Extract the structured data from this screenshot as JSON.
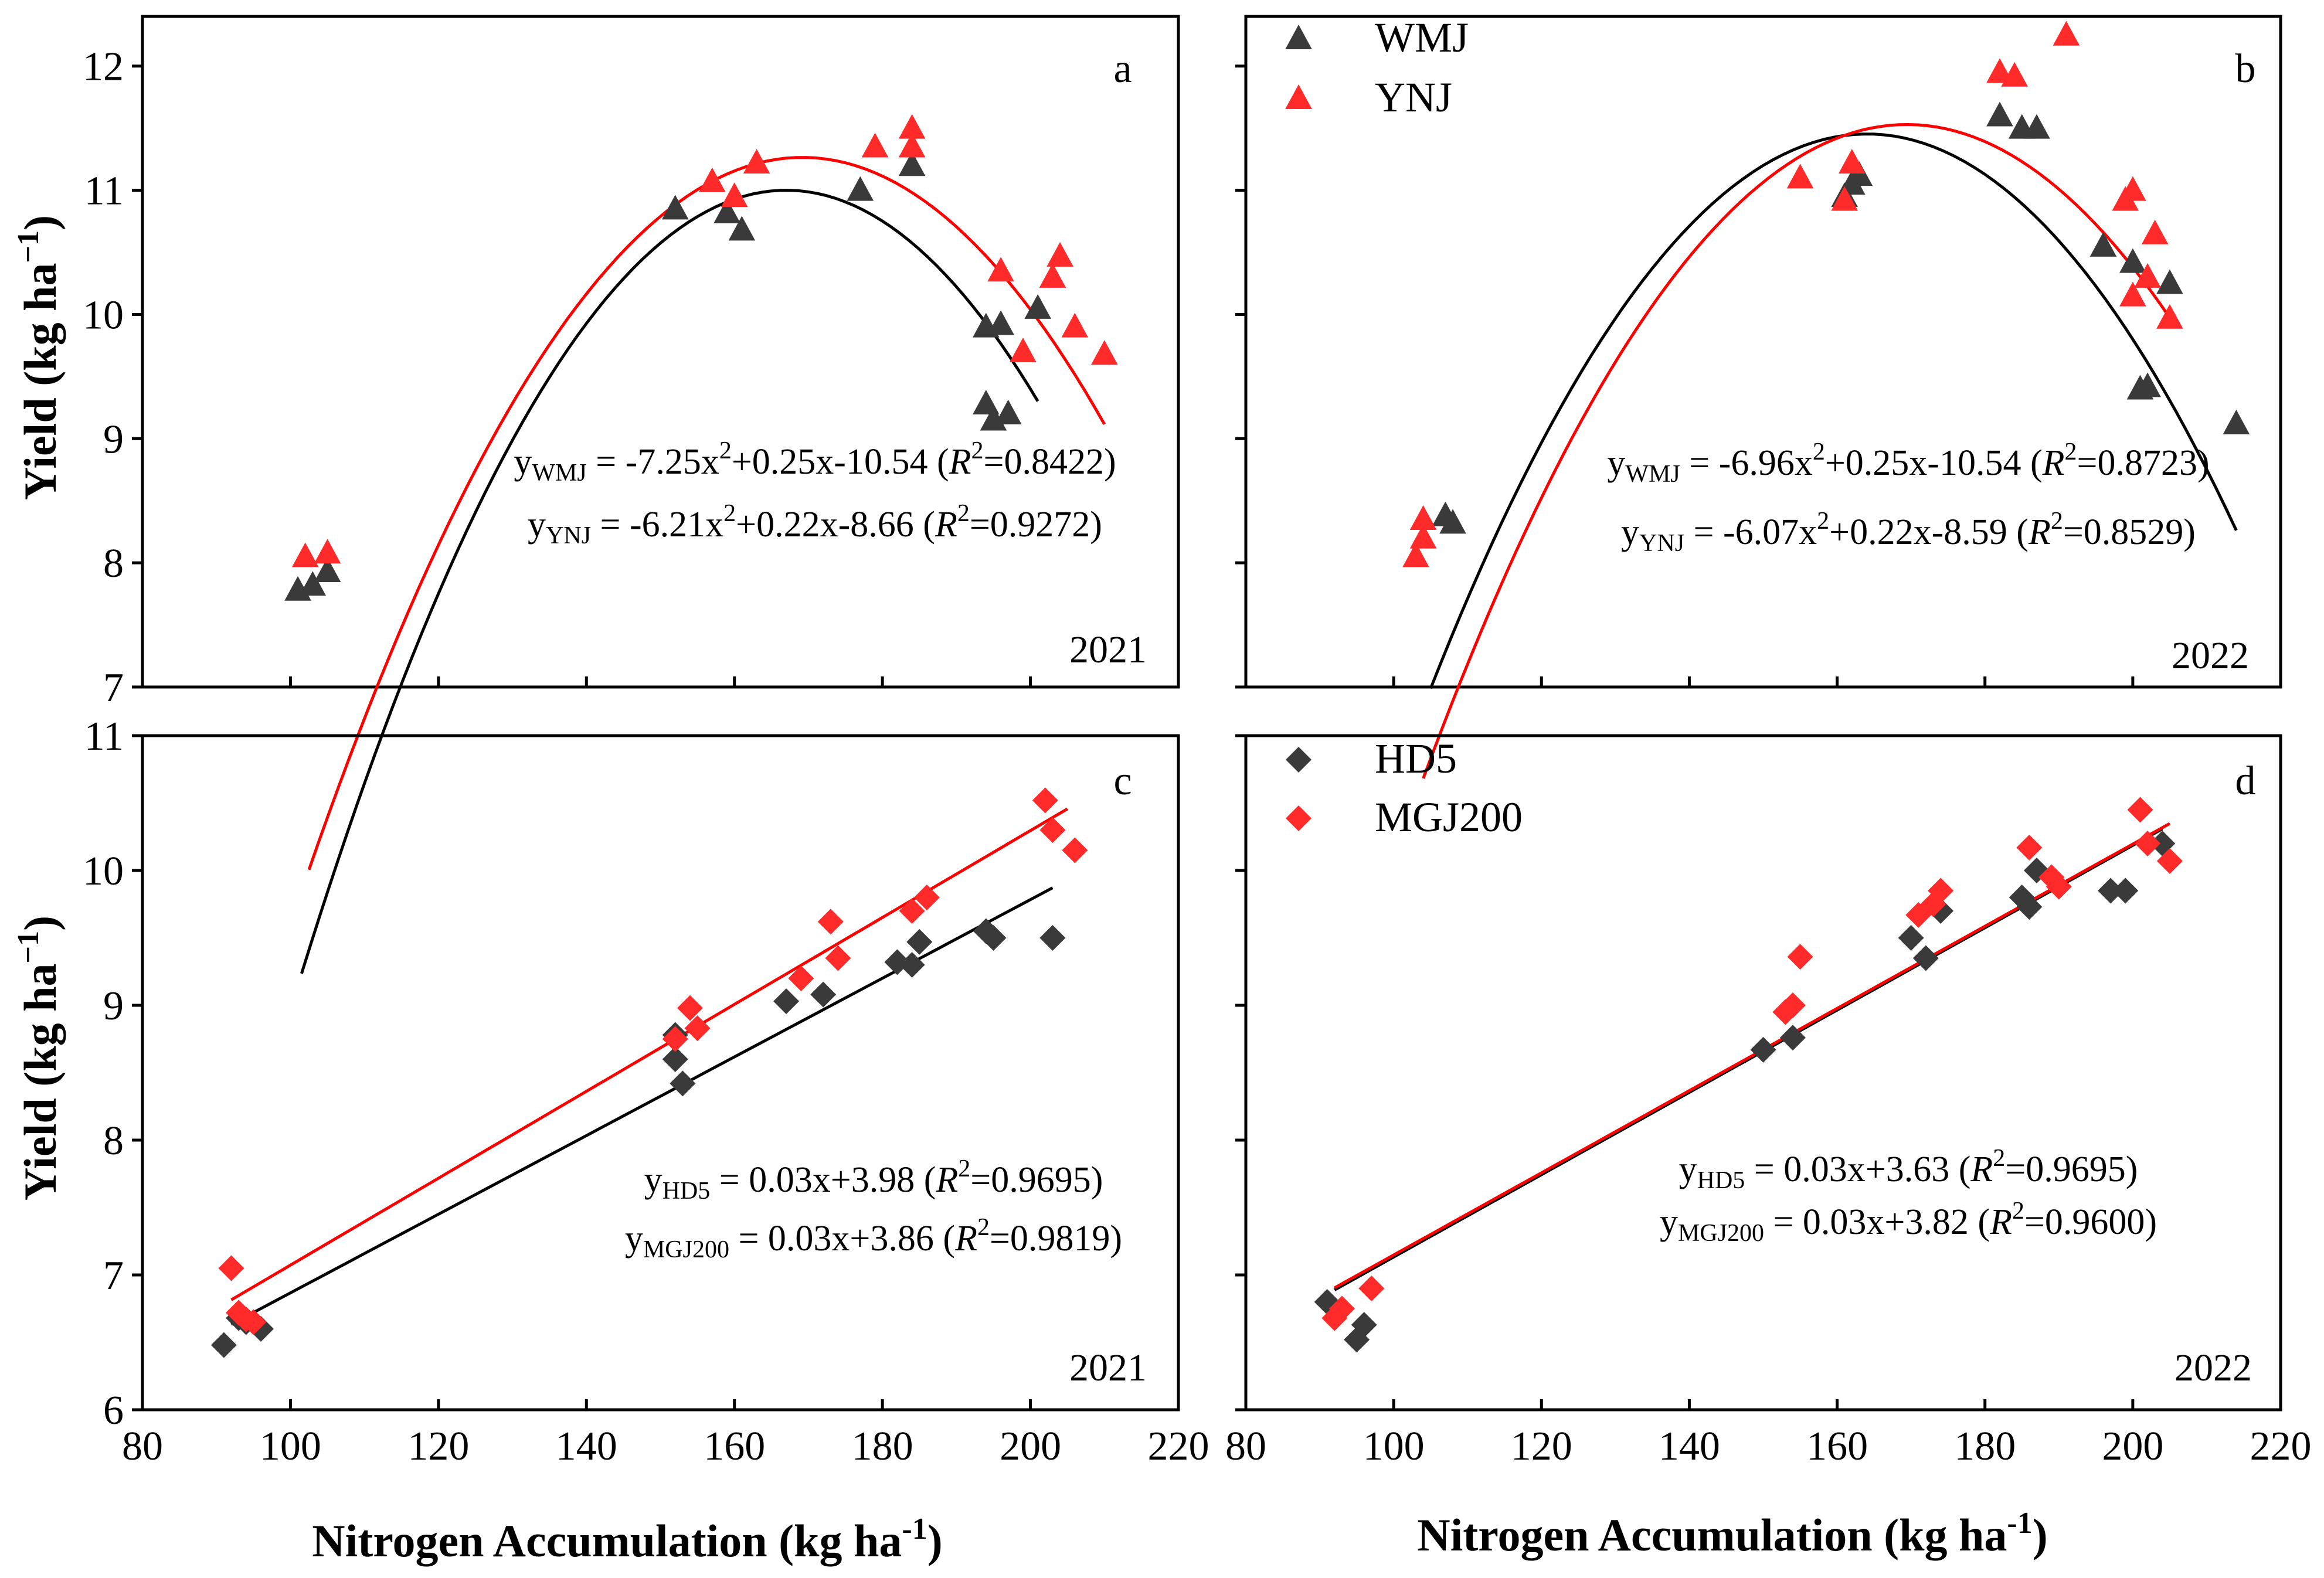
{
  "colors": {
    "black_series": "#3a3a3a",
    "red_series": "#ff2a2a",
    "black_line": "#000000",
    "red_line": "#ff0000"
  },
  "axes": {
    "x_title": "Nitrogen  Accumulation (kg ha",
    "x_title_sup": "-1",
    "x_title_end": ")",
    "y_title": "Yield (kg ha",
    "y_title_sup": "−1",
    "y_title_end": ")"
  },
  "chart_data": [
    {
      "id": "a",
      "type": "scatter",
      "letter": "a",
      "year": "2021",
      "xlim": [
        80,
        220
      ],
      "ylim": [
        7,
        12.4
      ],
      "xticks": [
        80,
        100,
        120,
        140,
        160,
        180,
        200,
        220
      ],
      "yticks": [
        7,
        8,
        9,
        10,
        11,
        12
      ],
      "xtick_labels_shown": false,
      "ytick_labels_shown": true,
      "marker": "triangle",
      "legend": null,
      "series": [
        {
          "name": "WMJ",
          "color": "black",
          "points": [
            [
              101,
              7.78
            ],
            [
              103,
              7.82
            ],
            [
              105,
              7.93
            ],
            [
              152,
              10.85
            ],
            [
              159,
              10.82
            ],
            [
              161,
              10.68
            ],
            [
              177,
              11.0
            ],
            [
              184,
              11.2
            ],
            [
              194,
              9.9
            ],
            [
              196,
              9.92
            ],
            [
              194,
              9.28
            ],
            [
              195,
              9.15
            ],
            [
              197,
              9.2
            ],
            [
              201,
              10.05
            ]
          ],
          "fit": {
            "kind": "poly2",
            "coef": [
              -0.00147,
              0.491,
              -30.0
            ],
            "x_range": [
              101.5,
              201
            ]
          }
        },
        {
          "name": "YNJ",
          "color": "red",
          "points": [
            [
              102,
              8.05
            ],
            [
              105,
              8.08
            ],
            [
              157,
              11.07
            ],
            [
              160,
              10.95
            ],
            [
              163,
              11.22
            ],
            [
              179,
              11.35
            ],
            [
              184,
              11.35
            ],
            [
              184,
              11.5
            ],
            [
              196,
              10.35
            ],
            [
              199,
              9.7
            ],
            [
              203,
              10.3
            ],
            [
              204,
              10.47
            ],
            [
              206,
              9.9
            ],
            [
              210,
              9.68
            ]
          ],
          "fit": {
            "kind": "poly2",
            "coef": [
              -0.00129,
              0.4365,
              -25.66
            ],
            "x_range": [
              102.5,
              210
            ]
          }
        }
      ],
      "equations": [
        {
          "y": "y",
          "sub": "WMJ",
          "eq": " = -7.25x",
          "pow": "2",
          "rest": "+0.25x-10.54",
          "r2": "=0.8422)"
        },
        {
          "y": "y",
          "sub": "YNJ",
          "eq": " = -6.21x",
          "pow": "2",
          "rest": "+0.22x-8.66",
          "r2": "=0.9272)"
        }
      ]
    },
    {
      "id": "b",
      "type": "scatter",
      "letter": "b",
      "year": "2022",
      "xlim": [
        80,
        220
      ],
      "ylim": [
        7,
        12.4
      ],
      "xticks": [
        80,
        100,
        120,
        140,
        160,
        180,
        200,
        220
      ],
      "yticks": [
        7,
        8,
        9,
        10,
        11,
        12
      ],
      "xtick_labels_shown": false,
      "ytick_labels_shown": false,
      "marker": "triangle",
      "legend": {
        "items": [
          "WMJ",
          "YNJ"
        ]
      },
      "series": [
        {
          "name": "WMJ",
          "color": "black",
          "points": [
            [
              107,
              8.38
            ],
            [
              108,
              8.32
            ],
            [
              161,
              10.95
            ],
            [
              162,
              11.05
            ],
            [
              163,
              11.12
            ],
            [
              182,
              11.6
            ],
            [
              185,
              11.5
            ],
            [
              187,
              11.5
            ],
            [
              196,
              10.55
            ],
            [
              200,
              10.42
            ],
            [
              201,
              9.4
            ],
            [
              202,
              9.42
            ],
            [
              205,
              10.25
            ],
            [
              214,
              9.12
            ]
          ],
          "fit": {
            "kind": "poly2",
            "coef": [
              -0.00128,
              0.42,
              -23.0
            ],
            "x_range": [
              105,
              214
            ]
          }
        },
        {
          "name": "YNJ",
          "color": "red",
          "points": [
            [
              103,
              8.05
            ],
            [
              104,
              8.2
            ],
            [
              104,
              8.35
            ],
            [
              155,
              11.1
            ],
            [
              161,
              10.92
            ],
            [
              162,
              11.22
            ],
            [
              182,
              11.95
            ],
            [
              184,
              11.92
            ],
            [
              191,
              12.25
            ],
            [
              199,
              10.92
            ],
            [
              200,
              11.0
            ],
            [
              200,
              10.15
            ],
            [
              202,
              10.3
            ],
            [
              203,
              10.65
            ],
            [
              205,
              9.97
            ]
          ],
          "fit": {
            "kind": "poly2",
            "coef": [
              -0.00123,
              0.4168,
              -23.78
            ],
            "x_range": [
              104,
              205
            ]
          }
        }
      ],
      "equations": [
        {
          "y": "y",
          "sub": "WMJ",
          "eq": " = -6.96x",
          "pow": "2",
          "rest": "+0.25x-10.54",
          "r2": "=0.8723)"
        },
        {
          "y": "y",
          "sub": "YNJ",
          "eq": " = -6.07x",
          "pow": "2",
          "rest": "+0.22x-8.59",
          "r2": "=0.8529)"
        }
      ]
    },
    {
      "id": "c",
      "type": "scatter",
      "letter": "c",
      "year": "2021",
      "xlim": [
        80,
        220
      ],
      "ylim": [
        6,
        11
      ],
      "xticks": [
        80,
        100,
        120,
        140,
        160,
        180,
        200,
        220
      ],
      "yticks": [
        6,
        7,
        8,
        9,
        10,
        11
      ],
      "xtick_labels_shown": true,
      "ytick_labels_shown": true,
      "marker": "diamond",
      "legend": null,
      "series": [
        {
          "name": "HD5",
          "color": "black",
          "points": [
            [
              91,
              6.48
            ],
            [
              93,
              6.68
            ],
            [
              94,
              6.65
            ],
            [
              96,
              6.6
            ],
            [
              152,
              8.78
            ],
            [
              152,
              8.6
            ],
            [
              153,
              8.42
            ],
            [
              167,
              9.03
            ],
            [
              172,
              9.08
            ],
            [
              182,
              9.32
            ],
            [
              184,
              9.3
            ],
            [
              185,
              9.47
            ],
            [
              194,
              9.55
            ],
            [
              195,
              9.5
            ],
            [
              203,
              9.5
            ]
          ],
          "fit": {
            "kind": "linear",
            "coef": [
              0.02917,
              3.95
            ],
            "x_range": [
              92,
              203
            ]
          }
        },
        {
          "name": "MGJ200",
          "color": "red",
          "points": [
            [
              92,
              7.05
            ],
            [
              93,
              6.72
            ],
            [
              94,
              6.67
            ],
            [
              95,
              6.65
            ],
            [
              152,
              8.75
            ],
            [
              154,
              8.98
            ],
            [
              155,
              8.83
            ],
            [
              169,
              9.2
            ],
            [
              173,
              9.62
            ],
            [
              174,
              9.35
            ],
            [
              184,
              9.7
            ],
            [
              186,
              9.8
            ],
            [
              202,
              10.52
            ],
            [
              203,
              10.3
            ],
            [
              206,
              10.15
            ]
          ],
          "fit": {
            "kind": "linear",
            "coef": [
              0.03223,
              3.85
            ],
            "x_range": [
              92,
              205
            ]
          }
        }
      ],
      "equations": [
        {
          "y": "y",
          "sub": "HD5",
          "eq": "  = 0.03x+3.98",
          "pow": "",
          "rest": "",
          "r2": "=0.9695)"
        },
        {
          "y": "y",
          "sub": "MGJ200",
          "eq": " = 0.03x+3.86",
          "pow": "",
          "rest": "",
          "r2": "=0.9819)"
        }
      ]
    },
    {
      "id": "d",
      "type": "scatter",
      "letter": "d",
      "year": "2022",
      "xlim": [
        80,
        220
      ],
      "ylim": [
        6,
        11
      ],
      "xticks": [
        80,
        100,
        120,
        140,
        160,
        180,
        200,
        220
      ],
      "yticks": [
        6,
        7,
        8,
        9,
        10,
        11
      ],
      "xtick_labels_shown": true,
      "ytick_labels_shown": false,
      "marker": "diamond",
      "legend": {
        "items": [
          "HD5",
          "MGJ200"
        ]
      },
      "series": [
        {
          "name": "HD5",
          "color": "black",
          "points": [
            [
              91,
              6.8
            ],
            [
              95,
              6.52
            ],
            [
              96,
              6.63
            ],
            [
              150,
              8.67
            ],
            [
              154,
              8.76
            ],
            [
              170,
              9.5
            ],
            [
              172,
              9.35
            ],
            [
              174,
              9.7
            ],
            [
              185,
              9.8
            ],
            [
              186,
              9.73
            ],
            [
              187,
              10.0
            ],
            [
              197,
              9.85
            ],
            [
              199,
              9.85
            ],
            [
              204,
              10.2
            ]
          ],
          "fit": {
            "kind": "linear",
            "coef": [
              0.03053,
              4.08
            ],
            "x_range": [
              92,
              204
            ]
          }
        },
        {
          "name": "MGJ200",
          "color": "red",
          "points": [
            [
              92,
              6.68
            ],
            [
              93,
              6.75
            ],
            [
              97,
              6.9
            ],
            [
              153,
              8.95
            ],
            [
              154,
              9.0
            ],
            [
              155,
              9.36
            ],
            [
              171,
              9.67
            ],
            [
              173,
              9.75
            ],
            [
              174,
              9.85
            ],
            [
              186,
              10.17
            ],
            [
              189,
              9.95
            ],
            [
              190,
              9.88
            ],
            [
              201,
              10.45
            ],
            [
              202,
              10.2
            ],
            [
              205,
              10.07
            ]
          ],
          "fit": {
            "kind": "linear",
            "coef": [
              0.03048,
              4.1
            ],
            "x_range": [
              92,
              205
            ]
          }
        }
      ],
      "equations": [
        {
          "y": "y",
          "sub": "HD5",
          "eq": "  = 0.03x+3.63",
          "pow": "",
          "rest": "",
          "r2": "=0.9695)"
        },
        {
          "y": "y",
          "sub": "MGJ200",
          "eq": " = 0.03x+3.82",
          "pow": "",
          "rest": "",
          "r2": "=0.9600)"
        }
      ]
    }
  ]
}
